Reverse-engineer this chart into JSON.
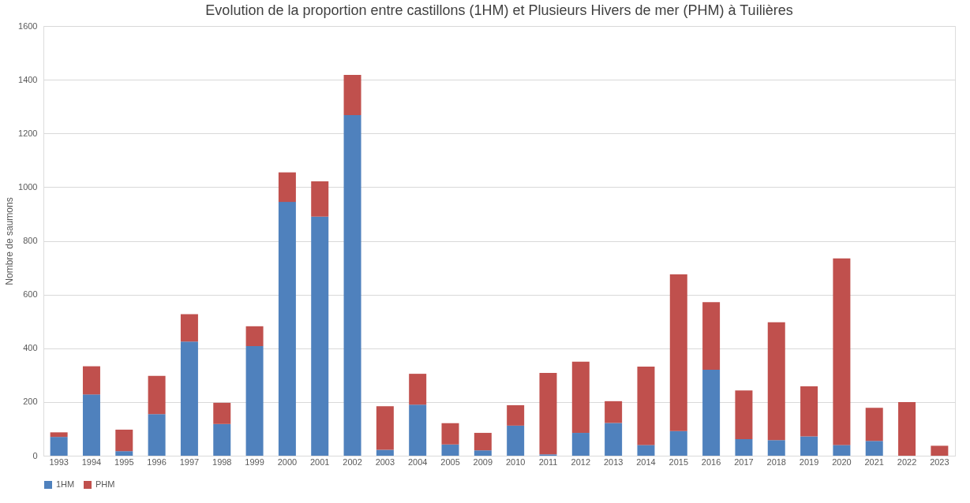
{
  "chart_data": {
    "type": "bar",
    "title": "Evolution de la proportion entre castillons (1HM) et Plusieurs Hivers de mer (PHM) à Tuilières",
    "ylabel": "Nombre de saumons",
    "categories": [
      "1993",
      "1994",
      "1995",
      "1996",
      "1997",
      "1998",
      "1999",
      "2000",
      "2001",
      "2002",
      "2003",
      "2004",
      "2005",
      "2009",
      "2010",
      "2011",
      "2012",
      "2013",
      "2014",
      "2015",
      "2016",
      "2017",
      "2018",
      "2019",
      "2020",
      "2021",
      "2022",
      "2023"
    ],
    "series": [
      {
        "name": "1HM",
        "color": "#4f81bd",
        "values": [
          70,
          228,
          17,
          155,
          425,
          118,
          408,
          945,
          890,
          1268,
          22,
          190,
          42,
          20,
          112,
          5,
          85,
          122,
          40,
          92,
          320,
          62,
          58,
          72,
          40,
          55,
          0,
          0
        ]
      },
      {
        "name": "PHM",
        "color": "#c0504d",
        "values": [
          17,
          105,
          80,
          142,
          102,
          79,
          74,
          110,
          132,
          150,
          162,
          115,
          79,
          65,
          76,
          303,
          265,
          81,
          292,
          583,
          252,
          181,
          439,
          186,
          695,
          123,
          200,
          37
        ]
      }
    ],
    "stacked": true,
    "ylim": [
      0,
      1600
    ],
    "yticks": [
      0,
      200,
      400,
      600,
      800,
      1000,
      1200,
      1400,
      1600
    ],
    "grid": "y",
    "legend": "bottom"
  }
}
